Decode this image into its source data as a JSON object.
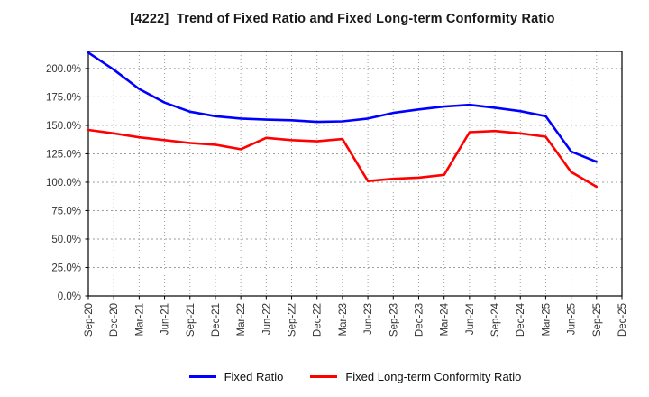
{
  "title": "[4222]  Trend of Fixed Ratio and Fixed Long-term Conformity Ratio",
  "chart_data": {
    "type": "line",
    "title": "[4222]  Trend of Fixed Ratio and Fixed Long-term Conformity Ratio",
    "xlabel": "",
    "ylabel": "",
    "categories": [
      "Sep-20",
      "Dec-20",
      "Mar-21",
      "Jun-21",
      "Sep-21",
      "Dec-21",
      "Mar-22",
      "Jun-22",
      "Sep-22",
      "Dec-22",
      "Mar-23",
      "Jun-23",
      "Sep-23",
      "Dec-23",
      "Mar-24",
      "Jun-24",
      "Sep-24",
      "Dec-24",
      "Mar-25",
      "Jun-25",
      "Sep-25",
      "Dec-25"
    ],
    "series": [
      {
        "name": "Fixed Ratio",
        "color": "#0000ff",
        "values": [
          214,
          199,
          182,
          170,
          162,
          158,
          156,
          155,
          154.5,
          153,
          153.5,
          156,
          161,
          164,
          166.5,
          168,
          165.5,
          162.5,
          158,
          127,
          118,
          null
        ]
      },
      {
        "name": "Fixed Long-term Conformity Ratio",
        "color": "#ff0000",
        "values": [
          146,
          143,
          139.5,
          137,
          134.5,
          133,
          129,
          139,
          137,
          136,
          138,
          101,
          103,
          104,
          106.5,
          144,
          145,
          143,
          140,
          109,
          96,
          null
        ]
      }
    ],
    "ylim": [
      0,
      215
    ],
    "yticks": [
      0,
      25,
      50,
      75,
      100,
      125,
      150,
      175,
      200
    ],
    "ytick_suffix": "%",
    "ytick_decimals": 1,
    "grid": true,
    "legend_position": "bottom-center"
  },
  "legend": {
    "items": [
      {
        "label": "Fixed Ratio",
        "color": "#0000ff"
      },
      {
        "label": "Fixed Long-term Conformity Ratio",
        "color": "#ff0000"
      }
    ]
  },
  "style": {
    "grid_color": "#9e9e9e",
    "border_color": "#000000",
    "tick_label_color": "#333333"
  }
}
